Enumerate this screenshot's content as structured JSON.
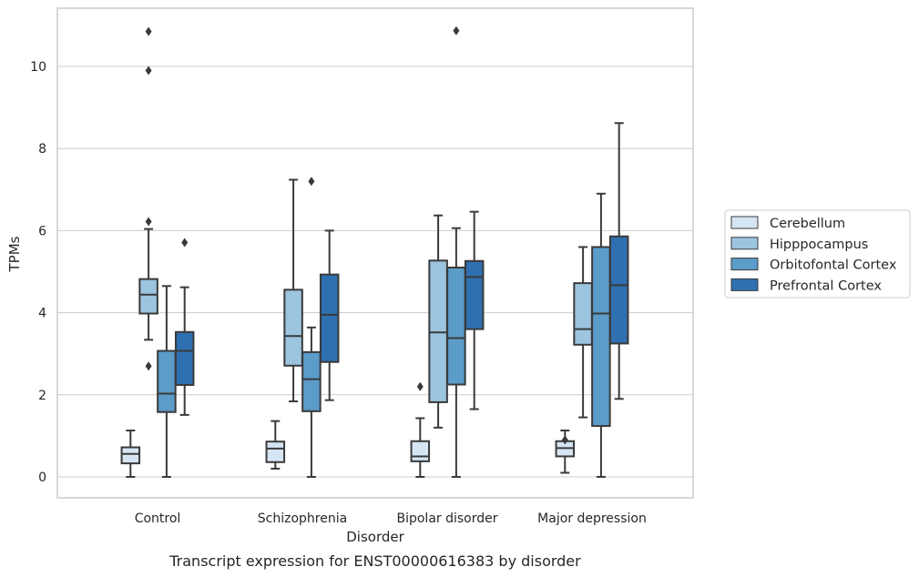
{
  "caption": "Transcript expression for ENST00000616383 by disorder",
  "chart_data": {
    "type": "box",
    "title": "",
    "xlabel": "Disorder",
    "ylabel": "TPMs",
    "ylim": [
      -0.5,
      11.45
    ],
    "yticks": [
      0,
      2,
      4,
      6,
      8,
      10
    ],
    "grid": "horizontal",
    "legend_placement": "right",
    "categories": [
      "Control",
      "Schizophrenia",
      "Bipolar disorder",
      "Major depression"
    ],
    "series": [
      {
        "name": "Cerebellum",
        "color": "#d6e5f3",
        "boxes": [
          {
            "whisker_low": 0.0,
            "q1": 0.33,
            "median": 0.56,
            "q3": 0.72,
            "whisker_high": 1.13,
            "outliers": []
          },
          {
            "whisker_low": 0.2,
            "q1": 0.36,
            "median": 0.69,
            "q3": 0.86,
            "whisker_high": 1.36,
            "outliers": []
          },
          {
            "whisker_low": 0.0,
            "q1": 0.38,
            "median": 0.5,
            "q3": 0.87,
            "whisker_high": 1.43,
            "outliers": [
              2.2
            ]
          },
          {
            "whisker_low": 0.1,
            "q1": 0.5,
            "median": 0.7,
            "q3": 0.87,
            "whisker_high": 1.13,
            "outliers": [
              0.9
            ]
          }
        ]
      },
      {
        "name": "Hipppocampus",
        "color": "#9cc4df",
        "boxes": [
          {
            "whisker_low": 3.34,
            "q1": 3.98,
            "median": 4.44,
            "q3": 4.82,
            "whisker_high": 6.04,
            "outliers": [
              2.7,
              6.22,
              9.9,
              10.85
            ]
          },
          {
            "whisker_low": 1.84,
            "q1": 2.71,
            "median": 3.43,
            "q3": 4.56,
            "whisker_high": 7.24,
            "outliers": []
          },
          {
            "whisker_low": 1.2,
            "q1": 1.82,
            "median": 3.52,
            "q3": 5.27,
            "whisker_high": 6.37,
            "outliers": []
          },
          {
            "whisker_low": 1.45,
            "q1": 3.22,
            "median": 3.6,
            "q3": 4.72,
            "whisker_high": 5.6,
            "outliers": []
          }
        ]
      },
      {
        "name": "Orbitofontal Cortex",
        "color": "#5b9cc9",
        "boxes": [
          {
            "whisker_low": 0.0,
            "q1": 1.58,
            "median": 2.03,
            "q3": 3.07,
            "whisker_high": 4.65,
            "outliers": []
          },
          {
            "whisker_low": 0.0,
            "q1": 1.6,
            "median": 2.38,
            "q3": 3.04,
            "whisker_high": 3.64,
            "outliers": [
              7.2
            ]
          },
          {
            "whisker_low": 0.0,
            "q1": 2.25,
            "median": 3.38,
            "q3": 5.1,
            "whisker_high": 6.06,
            "outliers": [
              10.87
            ]
          },
          {
            "whisker_low": 0.0,
            "q1": 1.24,
            "median": 3.98,
            "q3": 5.6,
            "whisker_high": 6.9,
            "outliers": []
          }
        ]
      },
      {
        "name": "Prefrontal Cortex",
        "color": "#2f70b0",
        "boxes": [
          {
            "whisker_low": 1.51,
            "q1": 2.24,
            "median": 3.07,
            "q3": 3.53,
            "whisker_high": 4.62,
            "outliers": [
              5.71
            ]
          },
          {
            "whisker_low": 1.87,
            "q1": 2.8,
            "median": 3.95,
            "q3": 4.93,
            "whisker_high": 6.0,
            "outliers": []
          },
          {
            "whisker_low": 1.65,
            "q1": 3.6,
            "median": 4.87,
            "q3": 5.26,
            "whisker_high": 6.46,
            "outliers": []
          },
          {
            "whisker_low": 1.9,
            "q1": 3.25,
            "median": 4.67,
            "q3": 5.86,
            "whisker_high": 8.62,
            "outliers": []
          }
        ]
      }
    ]
  }
}
